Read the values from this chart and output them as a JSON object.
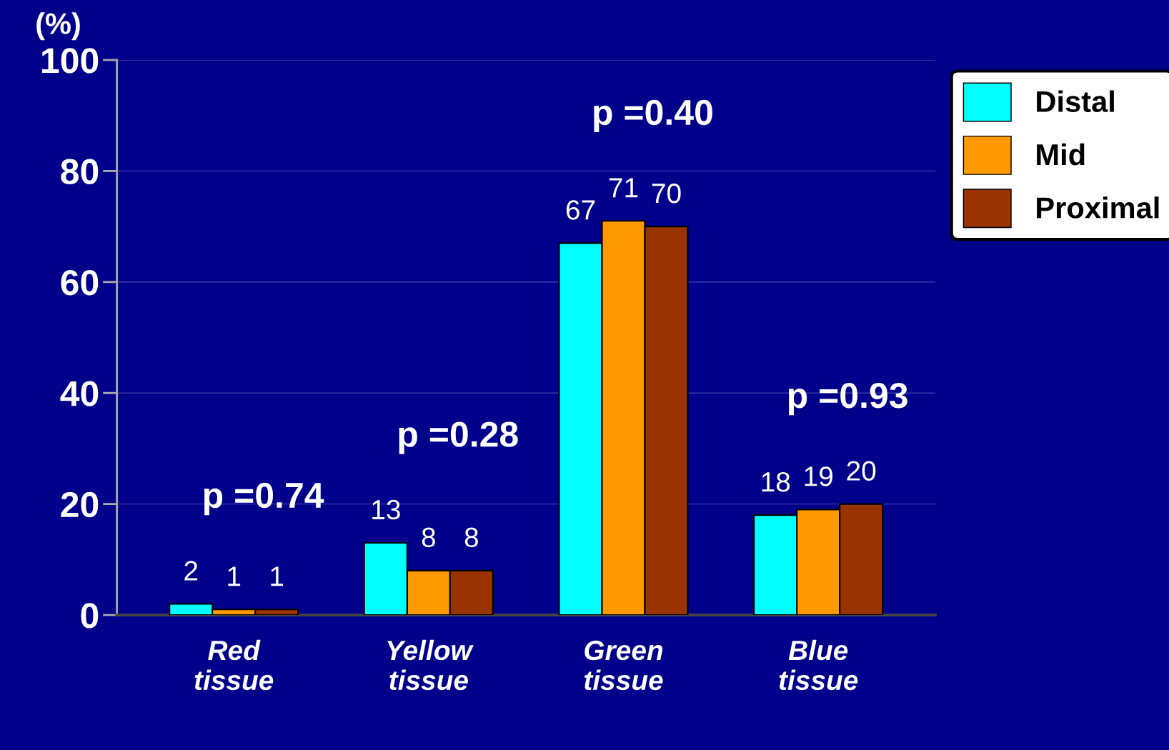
{
  "chart_data": {
    "type": "bar",
    "ylabel": "(%)",
    "categories": [
      "Red\ntissue",
      "Yellow\ntissue",
      "Green\ntissue",
      "Blue\ntissue"
    ],
    "series": [
      {
        "name": "Distal",
        "color": "#00ffff",
        "values": [
          2,
          13,
          67,
          18
        ]
      },
      {
        "name": "Mid",
        "color": "#ff9900",
        "values": [
          1,
          8,
          71,
          19
        ]
      },
      {
        "name": "Proximal",
        "color": "#993300",
        "values": [
          1,
          8,
          70,
          20
        ]
      }
    ],
    "ylim": [
      0,
      100
    ],
    "yticks": [
      0,
      20,
      40,
      60,
      80,
      100
    ],
    "grid": "y",
    "legend": "top right",
    "data_labels": true,
    "annotations": [
      "p =0.74",
      "p =0.28",
      "p =0.40",
      "p =0.93"
    ]
  }
}
